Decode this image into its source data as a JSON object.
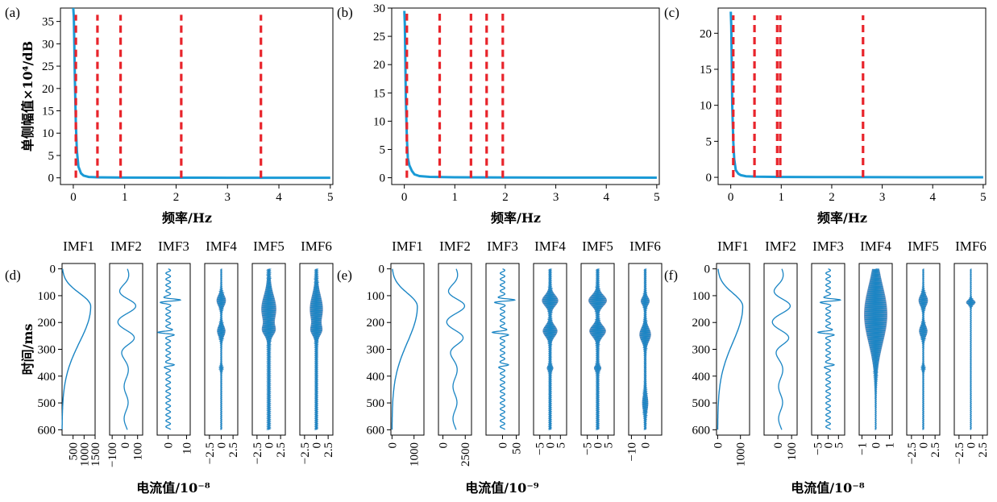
{
  "chart_data": {
    "colors": {
      "spectrum": "#1a9ad6",
      "peak": "#e8242b",
      "imf_line": "#1a85c4",
      "imf_fill": "#25478a"
    },
    "top_panels": [
      {
        "label": "(a)",
        "type": "line",
        "ylabel": "单侧幅值×10⁴/dB",
        "xlabel": "频率/Hz",
        "xlim": [
          -0.25,
          5.05
        ],
        "xticks": [
          "0",
          "1",
          "2",
          "3",
          "4",
          "5"
        ],
        "ylim": [
          -1.5,
          38
        ],
        "yticks": [
          "0",
          "5",
          "10",
          "15",
          "20",
          "25",
          "30",
          "35"
        ],
        "y_step": 5,
        "peak_frequencies": [
          0.05,
          0.47,
          0.92,
          2.1,
          3.65
        ],
        "peak_height": 36.5,
        "spectrum_x": [
          0,
          0.01,
          0.02,
          0.03,
          0.05,
          0.07,
          0.1,
          0.15,
          0.2,
          0.3,
          0.5,
          1,
          2,
          3,
          4,
          5
        ],
        "spectrum_y": [
          38,
          36,
          30,
          22,
          12,
          6,
          2.5,
          1,
          0.5,
          0.2,
          0.1,
          0.05,
          0.03,
          0.02,
          0.02,
          0.01
        ]
      },
      {
        "label": "(b)",
        "type": "line",
        "ylabel": "",
        "xlabel": "频率/Hz",
        "xlim": [
          -0.25,
          5.05
        ],
        "xticks": [
          "0",
          "1",
          "2",
          "3",
          "4",
          "5"
        ],
        "ylim": [
          -1.2,
          30
        ],
        "yticks": [
          "0",
          "5",
          "10",
          "15",
          "20",
          "25",
          "30"
        ],
        "y_step": 5,
        "peak_frequencies": [
          0.05,
          0.7,
          1.32,
          1.63,
          1.95
        ],
        "peak_height": 29,
        "spectrum_x": [
          0,
          0.01,
          0.02,
          0.03,
          0.05,
          0.07,
          0.1,
          0.15,
          0.2,
          0.3,
          0.5,
          1,
          2,
          3,
          4,
          5
        ],
        "spectrum_y": [
          29.5,
          27,
          21,
          14,
          7,
          3.5,
          2.2,
          1.2,
          0.6,
          0.3,
          0.15,
          0.08,
          0.05,
          0.03,
          0.02,
          0.01
        ]
      },
      {
        "label": "(c)",
        "type": "line",
        "ylabel": "",
        "xlabel": "频率/Hz",
        "xlim": [
          -0.25,
          5.05
        ],
        "xticks": [
          "0",
          "1",
          "2",
          "3",
          "4",
          "5"
        ],
        "ylim": [
          -1,
          23.5
        ],
        "yticks": [
          "0",
          "5",
          "10",
          "15",
          "20"
        ],
        "y_step": 5,
        "peak_frequencies": [
          0.05,
          0.47,
          0.92,
          0.98,
          2.62
        ],
        "peak_height": 22.5,
        "spectrum_x": [
          0,
          0.01,
          0.02,
          0.03,
          0.05,
          0.07,
          0.1,
          0.15,
          0.2,
          0.3,
          0.5,
          1,
          2,
          3,
          4,
          5
        ],
        "spectrum_y": [
          23,
          21,
          16,
          10,
          5,
          2.5,
          1,
          0.5,
          0.3,
          0.15,
          0.08,
          0.05,
          0.03,
          0.02,
          0.01,
          0.01
        ]
      }
    ],
    "bottom_groups": [
      {
        "label": "(d)",
        "ylabel": "时间/ms",
        "xlabel": "电流值/10⁻⁸",
        "ylim": [
          -20,
          620
        ],
        "yticks": [
          "0",
          "100",
          "200",
          "300",
          "400",
          "500",
          "600"
        ],
        "y_step": 100,
        "imfs": [
          {
            "title": "IMF1",
            "kind": "trend",
            "xlim": [
              0,
              1500
            ],
            "peak_x": 1300,
            "peak_t": 140,
            "xticks": [
              "500",
              "1000",
              "1500"
            ],
            "xtick_values": [
              500,
              1000,
              1500
            ]
          },
          {
            "title": "IMF2",
            "kind": "osc2",
            "xlim": [
              -120,
              140
            ],
            "xticks": [
              "−100",
              "0",
              "100"
            ],
            "xtick_values": [
              -100,
              0,
              100
            ]
          },
          {
            "title": "IMF3",
            "kind": "osc3",
            "xlim": [
              -6,
              12
            ],
            "xticks": [
              "0",
              "10"
            ],
            "xtick_values": [
              0,
              10
            ]
          },
          {
            "title": "IMF4",
            "kind": "burst",
            "amp": 1.0,
            "xlim": [
              -3.5,
              3.5
            ],
            "xticks": [
              "−2.5",
              "0",
              "2.5"
            ],
            "xtick_values": [
              -2.5,
              0,
              2.5
            ]
          },
          {
            "title": "IMF5",
            "kind": "dense",
            "amp": 1.6,
            "xlim": [
              -3.5,
              3.5
            ],
            "xticks": [
              "−2.5",
              "0",
              "2.5"
            ],
            "xtick_values": [
              -2.5,
              0,
              2.5
            ]
          },
          {
            "title": "IMF6",
            "kind": "dense",
            "amp": 1.4,
            "xlim": [
              -3.5,
              3.5
            ],
            "xticks": [
              "−2.5",
              "0",
              "2.5"
            ],
            "xtick_values": [
              -2.5,
              0,
              2.5
            ]
          }
        ]
      },
      {
        "label": "(e)",
        "ylabel": "",
        "xlabel": "电流值/10⁻⁹",
        "ylim": [
          -20,
          620
        ],
        "yticks": [
          "0",
          "100",
          "200",
          "300",
          "400",
          "500",
          "600"
        ],
        "y_step": 100,
        "imfs": [
          {
            "title": "IMF1",
            "kind": "trend",
            "xlim": [
              -50,
              1450
            ],
            "peak_x": 1150,
            "peak_t": 140,
            "xticks": [
              "0",
              "1000"
            ],
            "xtick_values": [
              0,
              1000
            ]
          },
          {
            "title": "IMF2",
            "kind": "osc2",
            "xlim": [
              -500,
              3200
            ],
            "xticks": [
              "0",
              "2500"
            ],
            "xtick_values": [
              0,
              2500
            ]
          },
          {
            "title": "IMF3",
            "kind": "osc3",
            "xlim": [
              -60,
              60
            ],
            "xticks": [
              "0",
              "50"
            ],
            "xtick_values": [
              0,
              50
            ]
          },
          {
            "title": "IMF4",
            "kind": "burst",
            "amp": 4.0,
            "xlim": [
              -8,
              8
            ],
            "xticks": [
              "−5",
              "0",
              "5"
            ],
            "xtick_values": [
              -5,
              0,
              5
            ]
          },
          {
            "title": "IMF5",
            "kind": "burst",
            "amp": 4.5,
            "xlim": [
              -8,
              8
            ],
            "xticks": [
              "−5",
              "0",
              "5"
            ],
            "xtick_values": [
              -5,
              0,
              5
            ]
          },
          {
            "title": "IMF6",
            "kind": "sparse",
            "amp": 5.0,
            "xlim": [
              -12,
              12
            ],
            "xticks": [
              "−10",
              "0"
            ],
            "xtick_values": [
              -10,
              0
            ]
          }
        ]
      },
      {
        "label": "(f)",
        "ylabel": "",
        "xlabel": "电流值/10⁻⁸",
        "ylim": [
          -20,
          620
        ],
        "yticks": [
          "0",
          "100",
          "200",
          "300",
          "400",
          "500",
          "600"
        ],
        "y_step": 100,
        "imfs": [
          {
            "title": "IMF1",
            "kind": "trend",
            "xlim": [
              -50,
              1400
            ],
            "peak_x": 1100,
            "peak_t": 140,
            "xticks": [
              "0",
              "1000"
            ],
            "xtick_values": [
              0,
              1000
            ]
          },
          {
            "title": "IMF2",
            "kind": "osc2",
            "xlim": [
              -100,
              140
            ],
            "xticks": [
              "0",
              "100"
            ],
            "xtick_values": [
              0,
              100
            ]
          },
          {
            "title": "IMF3",
            "kind": "osc3",
            "xlim": [
              -8,
              8
            ],
            "xticks": [
              "−5",
              "0",
              "5"
            ],
            "xtick_values": [
              -5,
              0,
              5
            ]
          },
          {
            "title": "IMF4",
            "kind": "spindle",
            "amp": 0.85,
            "xlim": [
              -1.2,
              1.2
            ],
            "xticks": [
              "−1",
              "0",
              "1"
            ],
            "xtick_values": [
              -1,
              0,
              1
            ]
          },
          {
            "title": "IMF5",
            "kind": "burst",
            "amp": 1.0,
            "xlim": [
              -3.5,
              3.5
            ],
            "xticks": [
              "−2.5",
              "0",
              "2.5"
            ],
            "xtick_values": [
              -2.5,
              0,
              2.5
            ]
          },
          {
            "title": "IMF6",
            "kind": "spike",
            "amp": 1.0,
            "xlim": [
              -3.5,
              3.5
            ],
            "xticks": [
              "−2.5",
              "0",
              "2.5"
            ],
            "xtick_values": [
              -2.5,
              0,
              2.5
            ]
          }
        ]
      }
    ]
  }
}
